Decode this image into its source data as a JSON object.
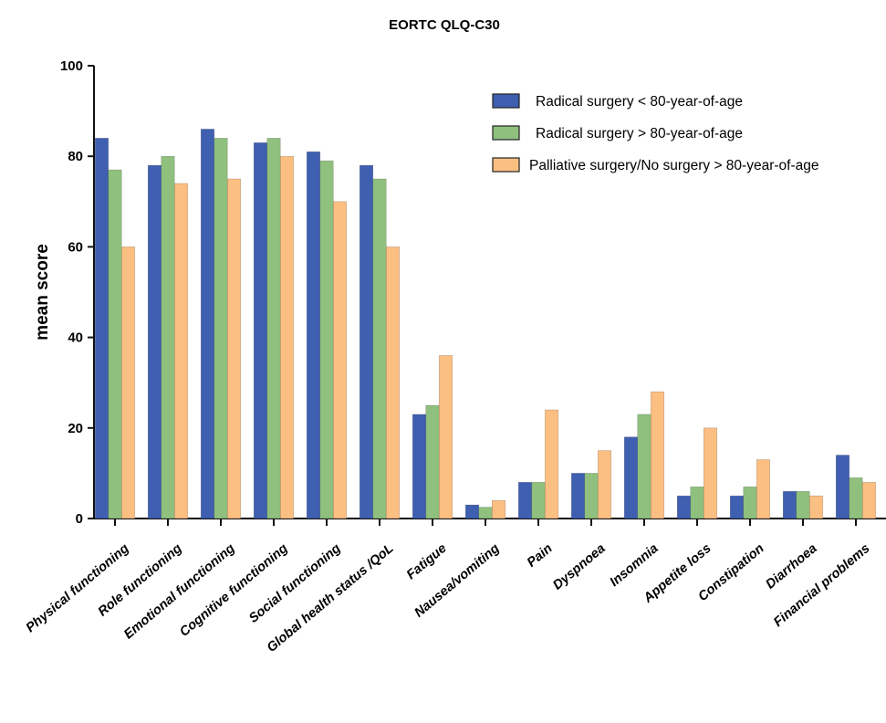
{
  "chart_data": {
    "type": "bar",
    "title": "EORTC QLQ-C30",
    "xlabel": "",
    "ylabel": "mean score",
    "ylim": [
      0,
      100
    ],
    "yticks": [
      0,
      20,
      40,
      60,
      80,
      100
    ],
    "grid": false,
    "legend_position": "top-right",
    "categories": [
      "Physical functioning",
      "Role functioning",
      "Emotional functioning",
      "Cognitive functioning",
      "Social functioning",
      "Global health status /QoL",
      "Fatigue",
      "Nausea/vomiting",
      "Pain",
      "Dyspnoea",
      "Insomnia",
      "Appetite loss",
      "Constipation",
      "Diarrhoea",
      "Financial problems"
    ],
    "series": [
      {
        "name": "Radical surgery < 80-year-of-age",
        "color": "#3f5fb0",
        "values": [
          84,
          78,
          86,
          83,
          81,
          78,
          23,
          3,
          8,
          10,
          18,
          5,
          5,
          6,
          14
        ]
      },
      {
        "name": "Radical surgery > 80-year-of-age",
        "color": "#8fc07e",
        "values": [
          77,
          80,
          84,
          84,
          79,
          75,
          25,
          2.5,
          8,
          10,
          23,
          7,
          7,
          6,
          9
        ]
      },
      {
        "name": "Palliative surgery/No surgery > 80-year-of-age",
        "color": "#fcbf82",
        "values": [
          60,
          74,
          75,
          80,
          70,
          60,
          36,
          4,
          24,
          15,
          28,
          20,
          13,
          5,
          8
        ]
      }
    ]
  }
}
